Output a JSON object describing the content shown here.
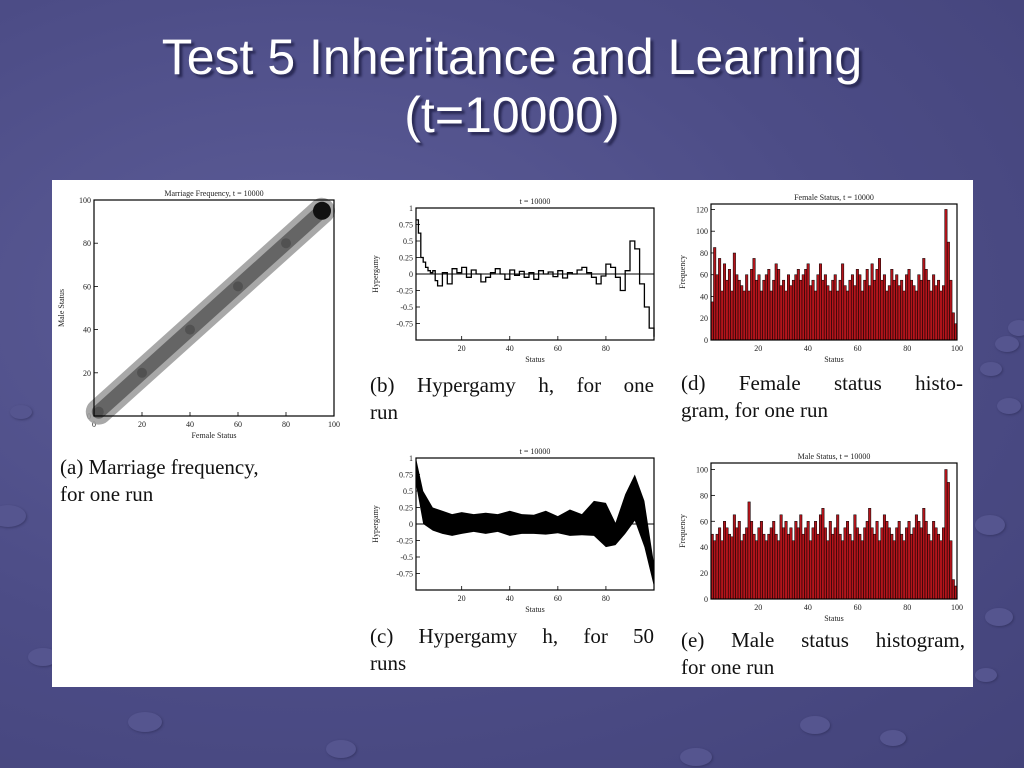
{
  "slide": {
    "title_line1": "Test 5 Inheritance and Learning",
    "title_line2": "(t=10000)"
  },
  "captions": {
    "a_line1": "(a)  Marriage frequency,",
    "a_line2": "for one run",
    "b_line1": "(b)  Hypergamy h, for one",
    "b_line2": "run",
    "c_line1": "(c)  Hypergamy h, for 50",
    "c_line2": "runs",
    "d_line1": "(d)  Female  status  histo-",
    "d_line2": "gram, for one run",
    "e_line1": "(e)  Male status histogram,",
    "e_line2": "for one run"
  },
  "chart_data": [
    {
      "id": "a",
      "type": "heatmap",
      "title": "Marriage Frequency, t = 10000",
      "xlabel": "Female Status",
      "ylabel": "Male Status",
      "xlim": [
        0,
        100
      ],
      "ylim": [
        0,
        100
      ],
      "xticks": [
        0,
        20,
        40,
        60,
        80,
        100
      ],
      "yticks": [
        0,
        20,
        40,
        60,
        80,
        100
      ],
      "xtick_labels": [
        "0",
        "20",
        "40",
        "60",
        "80",
        "100"
      ],
      "ytick_labels": [
        "0",
        "20",
        "40",
        "60",
        "80",
        "100"
      ],
      "band_center": [
        [
          2,
          2
        ],
        [
          20,
          20
        ],
        [
          40,
          40
        ],
        [
          60,
          60
        ],
        [
          80,
          80
        ],
        [
          95,
          95
        ]
      ],
      "hot_spot": [
        95,
        95
      ]
    },
    {
      "id": "b",
      "type": "line",
      "title": "t = 10000",
      "xlabel": "Status",
      "ylabel": "Hypergamy",
      "xlim": [
        1,
        100
      ],
      "ylim": [
        -1,
        1
      ],
      "xticks": [
        20,
        40,
        60,
        80
      ],
      "xtick_labels": [
        "20",
        "40",
        "60",
        "80"
      ],
      "yticks": [
        1,
        0.75,
        0.5,
        0.25,
        0,
        -0.25,
        -0.5,
        -0.75
      ],
      "ytick_labels": [
        "1",
        "0.75",
        "0.5",
        "0.25",
        "0",
        "-0.25",
        "-0.5",
        "-0.75"
      ],
      "x": [
        1,
        2,
        3,
        4,
        5,
        6,
        7,
        8,
        9,
        10,
        12,
        14,
        16,
        18,
        20,
        22,
        24,
        26,
        28,
        30,
        32,
        34,
        36,
        38,
        40,
        42,
        44,
        46,
        48,
        50,
        52,
        54,
        56,
        58,
        60,
        62,
        64,
        66,
        68,
        70,
        72,
        74,
        76,
        78,
        80,
        82,
        84,
        86,
        88,
        90,
        92,
        94,
        96,
        98,
        100
      ],
      "y": [
        0.82,
        0.62,
        0.25,
        0.18,
        0.1,
        0.05,
        0.02,
        0.05,
        -0.1,
        -0.18,
        0.02,
        -0.15,
        0.08,
        0.02,
        0.1,
        -0.05,
        0.06,
        0.0,
        -0.12,
        -0.05,
        0.02,
        0.08,
        0.0,
        -0.08,
        0.06,
        -0.02,
        0.04,
        -0.05,
        0.02,
        -0.08,
        0.05,
        0.0,
        0.03,
        -0.04,
        0.05,
        -0.06,
        0.02,
        0.0,
        0.06,
        0.1,
        0.02,
        -0.05,
        -0.15,
        -0.03,
        0.15,
        0.1,
        -0.05,
        -0.25,
        0.05,
        0.5,
        0.38,
        -0.15,
        -0.5,
        -0.82,
        -0.95
      ]
    },
    {
      "id": "c",
      "type": "area",
      "title": "t = 10000",
      "xlabel": "Status",
      "ylabel": "Hypergamy",
      "xlim": [
        1,
        100
      ],
      "ylim": [
        -1,
        1
      ],
      "xticks": [
        20,
        40,
        60,
        80
      ],
      "xtick_labels": [
        "20",
        "40",
        "60",
        "80"
      ],
      "yticks": [
        1,
        0.75,
        0.5,
        0.25,
        0,
        -0.25,
        -0.5,
        -0.75
      ],
      "ytick_labels": [
        "1",
        "0.75",
        "0.5",
        "0.25",
        "0",
        "-0.25",
        "-0.5",
        "-0.75"
      ],
      "x": [
        1,
        4,
        8,
        12,
        16,
        20,
        25,
        30,
        35,
        40,
        45,
        50,
        55,
        60,
        65,
        70,
        75,
        80,
        84,
        88,
        92,
        96,
        100
      ],
      "upper": [
        1.0,
        0.5,
        0.25,
        0.2,
        0.15,
        0.18,
        0.15,
        0.17,
        0.15,
        0.2,
        0.15,
        0.14,
        0.2,
        0.12,
        0.22,
        0.15,
        0.35,
        0.32,
        0.02,
        0.45,
        0.75,
        0.35,
        -0.6
      ],
      "lower": [
        0.6,
        0.0,
        -0.1,
        -0.15,
        -0.18,
        -0.15,
        -0.12,
        -0.15,
        -0.12,
        -0.18,
        -0.15,
        -0.15,
        -0.16,
        -0.14,
        -0.18,
        -0.17,
        -0.18,
        -0.35,
        -0.32,
        -0.15,
        0.05,
        -0.35,
        -0.95
      ]
    },
    {
      "id": "d",
      "type": "bar",
      "title": "Female Status, t = 10000",
      "xlabel": "Status",
      "ylabel": "Frequency",
      "xlim": [
        1,
        100
      ],
      "ylim": [
        0,
        125
      ],
      "xticks": [
        20,
        40,
        60,
        80,
        100
      ],
      "xtick_labels": [
        "20",
        "40",
        "60",
        "80",
        "100"
      ],
      "yticks": [
        0,
        20,
        40,
        60,
        80,
        100,
        120
      ],
      "ytick_labels": [
        "0",
        "20",
        "40",
        "60",
        "80",
        "100",
        "120"
      ],
      "values": [
        35,
        85,
        60,
        75,
        45,
        70,
        55,
        65,
        45,
        80,
        60,
        55,
        50,
        45,
        60,
        45,
        65,
        75,
        55,
        60,
        45,
        55,
        60,
        65,
        45,
        55,
        70,
        65,
        50,
        55,
        45,
        60,
        50,
        55,
        60,
        65,
        55,
        60,
        65,
        70,
        50,
        55,
        45,
        60,
        70,
        55,
        60,
        50,
        45,
        55,
        60,
        45,
        55,
        70,
        50,
        45,
        55,
        60,
        50,
        65,
        60,
        45,
        55,
        65,
        50,
        70,
        55,
        65,
        75,
        55,
        60,
        45,
        50,
        65,
        55,
        60,
        50,
        55,
        45,
        60,
        65,
        55,
        50,
        45,
        60,
        55,
        75,
        65,
        55,
        45,
        60,
        50,
        55,
        45,
        50,
        120,
        90,
        55,
        25,
        15
      ]
    },
    {
      "id": "e",
      "type": "bar",
      "title": "Male Status, t = 10000",
      "xlabel": "Status",
      "ylabel": "Frequency",
      "xlim": [
        1,
        100
      ],
      "ylim": [
        0,
        105
      ],
      "xticks": [
        20,
        40,
        60,
        80,
        100
      ],
      "xtick_labels": [
        "20",
        "40",
        "60",
        "80",
        "100"
      ],
      "yticks": [
        0,
        20,
        40,
        60,
        80,
        100
      ],
      "ytick_labels": [
        "0",
        "20",
        "40",
        "60",
        "80",
        "100"
      ],
      "values": [
        50,
        45,
        50,
        55,
        45,
        60,
        55,
        50,
        48,
        65,
        55,
        60,
        45,
        50,
        55,
        75,
        60,
        50,
        45,
        55,
        60,
        50,
        45,
        50,
        55,
        60,
        50,
        45,
        65,
        55,
        60,
        50,
        55,
        45,
        60,
        55,
        65,
        50,
        55,
        60,
        45,
        55,
        60,
        50,
        65,
        70,
        55,
        45,
        60,
        50,
        55,
        65,
        50,
        45,
        55,
        60,
        50,
        45,
        65,
        55,
        50,
        45,
        55,
        60,
        70,
        55,
        50,
        60,
        45,
        55,
        65,
        60,
        55,
        50,
        45,
        55,
        60,
        50,
        45,
        55,
        60,
        50,
        55,
        65,
        60,
        55,
        70,
        60,
        50,
        45,
        60,
        55,
        50,
        45,
        55,
        100,
        90,
        45,
        15,
        10
      ]
    }
  ]
}
